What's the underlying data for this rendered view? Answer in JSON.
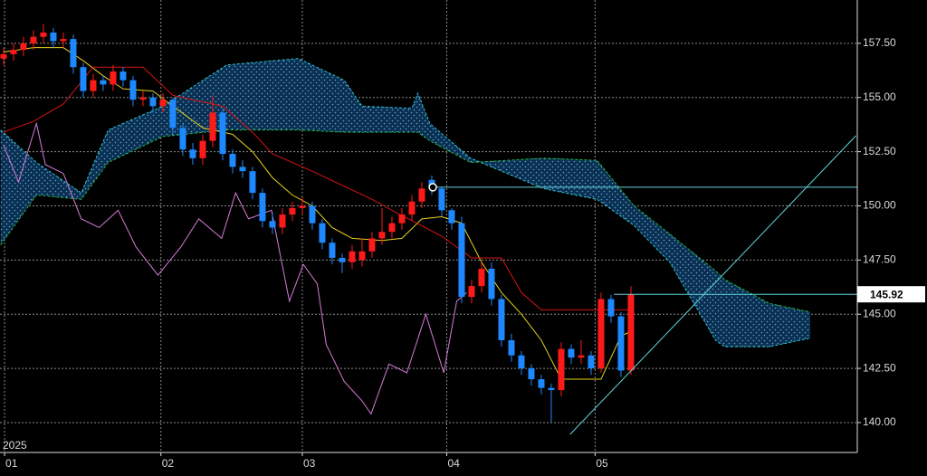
{
  "chart_data": {
    "type": "candlestick",
    "year_label": "2025",
    "xlim": [
      -0.36,
      85.73
    ],
    "xticks": [
      {
        "value": 0.1,
        "label": "01"
      },
      {
        "value": 15.8,
        "label": "02"
      },
      {
        "value": 30,
        "label": "03"
      },
      {
        "value": 44.5,
        "label": "04"
      },
      {
        "value": 59.4,
        "label": "05"
      }
    ],
    "ylim": [
      138.62,
      159.5
    ],
    "yticks": [
      {
        "value": 140,
        "label": "140.00"
      },
      {
        "value": 142.5,
        "label": "142.50"
      },
      {
        "value": 145,
        "label": "145.00"
      },
      {
        "value": 147.5,
        "label": "147.50"
      },
      {
        "value": 150,
        "label": "150.00"
      },
      {
        "value": 152.5,
        "label": "152.50"
      },
      {
        "value": 155,
        "label": "155.00"
      },
      {
        "value": 157.5,
        "label": "157.50"
      }
    ],
    "grid": true,
    "up_color": "#ff1a1a",
    "down_color": "#1e88ff",
    "x": [
      0,
      1,
      2,
      3,
      4,
      5,
      6,
      7,
      8,
      9,
      10,
      11,
      12,
      13,
      14,
      15,
      16,
      17,
      18,
      19,
      20,
      21,
      22,
      23,
      24,
      25,
      26,
      27,
      28,
      29,
      30,
      31,
      32,
      33,
      34,
      35,
      36,
      37,
      38,
      39,
      40,
      41,
      42,
      43,
      44,
      45,
      46,
      47,
      48,
      49,
      50,
      51,
      52,
      53,
      54,
      55,
      56,
      57,
      58,
      59,
      60,
      61,
      62,
      63
    ],
    "open": [
      156.8,
      157.0,
      157.2,
      157.5,
      157.8,
      158.0,
      157.6,
      157.7,
      156.4,
      155.3,
      155.8,
      155.6,
      156.2,
      155.8,
      154.9,
      155.0,
      154.6,
      154.9,
      153.6,
      152.6,
      152.2,
      153.0,
      154.3,
      152.4,
      151.8,
      151.6,
      150.6,
      149.3,
      149.0,
      149.6,
      149.9,
      150.0,
      149.2,
      148.3,
      147.6,
      147.4,
      147.5,
      147.9,
      148.5,
      148.8,
      149.2,
      149.6,
      150.2,
      151.2,
      150.8,
      149.8,
      149.2,
      145.8,
      146.3,
      147.1,
      145.7,
      143.8,
      143.1,
      142.5,
      142.0,
      141.6,
      141.5,
      143.4,
      143.0,
      143.1,
      142.5,
      145.7,
      144.9,
      142.4
    ],
    "high": [
      157.3,
      157.5,
      157.8,
      158.1,
      158.4,
      158.2,
      158.0,
      157.9,
      156.6,
      156.1,
      156.0,
      156.5,
      156.4,
      156.0,
      155.3,
      155.2,
      155.2,
      155.0,
      153.8,
      152.9,
      153.3,
      155.1,
      154.5,
      152.6,
      152.1,
      151.8,
      150.8,
      149.7,
      149.9,
      150.2,
      150.4,
      150.2,
      149.4,
      148.5,
      147.8,
      148.2,
      148.5,
      148.8,
      149.9,
      149.5,
      149.9,
      150.5,
      151.1,
      151.4,
      150.9,
      149.9,
      149.5,
      146.6,
      147.4,
      147.4,
      145.9,
      144.1,
      143.3,
      142.7,
      142.2,
      141.8,
      143.7,
      143.6,
      143.8,
      143.3,
      146.0,
      145.9,
      145.1,
      146.3
    ],
    "low": [
      156.5,
      156.7,
      156.9,
      157.2,
      157.5,
      157.3,
      157.3,
      156.1,
      155.0,
      155.0,
      155.3,
      155.3,
      155.5,
      154.6,
      154.6,
      154.3,
      154.3,
      153.3,
      152.3,
      151.9,
      151.9,
      152.7,
      152.1,
      151.5,
      151.3,
      150.3,
      149.0,
      148.7,
      148.7,
      149.3,
      149.6,
      148.9,
      148.0,
      147.3,
      146.9,
      147.1,
      147.2,
      147.6,
      148.2,
      148.5,
      148.9,
      149.3,
      149.9,
      150.5,
      149.5,
      148.9,
      145.5,
      145.5,
      146.0,
      145.4,
      143.5,
      142.8,
      142.2,
      141.7,
      141.3,
      140.0,
      141.2,
      142.7,
      142.7,
      142.2,
      142.3,
      144.6,
      142.1,
      142.2
    ],
    "close": [
      157.0,
      157.2,
      157.5,
      157.8,
      158.0,
      157.6,
      157.7,
      156.4,
      155.3,
      155.8,
      155.6,
      156.2,
      155.8,
      154.9,
      155.0,
      154.6,
      154.9,
      153.6,
      152.6,
      152.2,
      153.0,
      154.3,
      152.4,
      151.8,
      151.6,
      150.6,
      149.3,
      149.0,
      149.6,
      149.9,
      150.0,
      149.2,
      148.3,
      147.6,
      147.4,
      147.9,
      147.9,
      148.5,
      148.8,
      149.2,
      149.6,
      150.2,
      150.8,
      150.8,
      149.8,
      149.2,
      145.8,
      146.3,
      147.1,
      145.7,
      143.8,
      143.1,
      142.5,
      142.0,
      141.6,
      141.5,
      143.4,
      143.0,
      143.1,
      142.5,
      145.7,
      144.9,
      142.4,
      145.92
    ],
    "cloud": {
      "x": [
        -0.3,
        3.3,
        7.8,
        10.5,
        16,
        22.4,
        29.6,
        34.2,
        36,
        41,
        41.6,
        42.8,
        46.9,
        54.2,
        59.6,
        63.3,
        66.9,
        71.5,
        72.4,
        76.9,
        81
      ],
      "fill": "#0b2f52",
      "span_a": {
        "color": "#2ec8d8",
        "values": [
          153.5,
          152.0,
          150.6,
          153.5,
          154.6,
          156.5,
          156.8,
          155.8,
          154.6,
          154.5,
          155.2,
          153.8,
          152.2,
          150.8,
          150.3,
          149.1,
          147.4,
          143.8,
          143.5,
          143.5,
          143.9
        ]
      },
      "span_b": {
        "color": "#22b84a",
        "values": [
          148.2,
          150.5,
          150.3,
          152.0,
          153.2,
          153.5,
          153.5,
          153.4,
          153.4,
          153.4,
          153.4,
          153.0,
          152.0,
          152.2,
          152.1,
          150.0,
          148.7,
          147.0,
          146.6,
          145.5,
          145.1
        ]
      }
    },
    "lines": [
      {
        "color": "#e6d21e",
        "x": [
          0,
          3,
          6,
          8,
          10,
          12,
          15,
          17,
          20,
          23,
          25,
          27,
          29,
          31,
          33,
          35,
          38,
          40,
          42,
          44,
          46,
          48,
          50,
          52,
          54,
          56,
          58,
          60,
          62,
          63
        ],
        "values": [
          157.1,
          157.3,
          157.3,
          156.7,
          156.0,
          155.4,
          155.3,
          154.6,
          153.6,
          153.3,
          152.5,
          151.3,
          150.5,
          150.0,
          149.0,
          148.5,
          148.4,
          148.5,
          149.4,
          149.5,
          149.2,
          147.4,
          146.0,
          145.0,
          143.8,
          142.0,
          142.0,
          142.0,
          144.0,
          144.2
        ]
      },
      {
        "color": "#d41414",
        "x": [
          0,
          3,
          6,
          9,
          14,
          17,
          22,
          25,
          27,
          31,
          37,
          39,
          44,
          47,
          50,
          52,
          54,
          63
        ],
        "values": [
          153.4,
          153.9,
          154.7,
          156.4,
          156.4,
          155.1,
          154.6,
          153.4,
          152.4,
          151.6,
          150.3,
          149.8,
          148.6,
          147.6,
          147.6,
          146.0,
          145.2,
          145.2
        ]
      },
      {
        "color": "#d77ad8",
        "x": [
          0,
          1.5,
          3.3,
          4.2,
          6,
          7.8,
          9.6,
          11.5,
          13.3,
          15.5,
          17.8,
          19.6,
          21.9,
          23.3,
          24.6,
          26.9,
          28.7,
          30.1,
          31.5,
          32.4,
          34.2,
          36,
          36.9,
          38.7,
          40.5,
          42.4,
          44.2,
          45.5,
          46.5
        ],
        "values": [
          152.8,
          151.1,
          153.8,
          151.9,
          151.5,
          149.4,
          149.0,
          149.8,
          148.1,
          146.8,
          148.1,
          149.4,
          148.5,
          150.6,
          149.4,
          149.8,
          145.6,
          147.3,
          146.4,
          143.6,
          141.9,
          141.0,
          140.4,
          142.7,
          142.3,
          145.0,
          142.3,
          145.6,
          146.0
        ]
      }
    ],
    "trend_lines": [
      {
        "color": "#5fd3d8",
        "x": [
          43.1,
          85.73
        ],
        "values": [
          150.86,
          150.86
        ]
      },
      {
        "color": "#5fd3d8",
        "x": [
          61.3,
          85.73
        ],
        "values": [
          145.92,
          145.92
        ]
      },
      {
        "color": "#5fd3d8",
        "x": [
          56.9,
          85.6
        ],
        "values": [
          139.46,
          153.24
        ]
      }
    ],
    "marker": {
      "x": 43.1,
      "value": 150.86
    },
    "last_price": 145.92
  }
}
